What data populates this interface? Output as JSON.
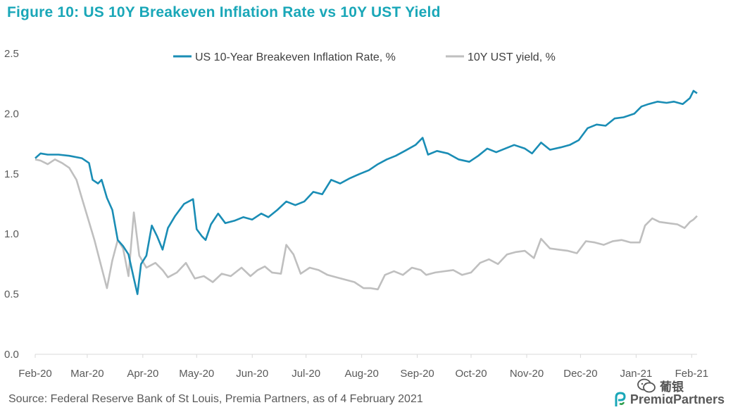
{
  "title": "Figure 10: US 10Y Breakeven Inflation Rate vs 10Y UST Yield",
  "source": "Source: Federal Reserve Bank of St Louis, Premia Partners, as of 4 February 2021",
  "logo": {
    "text": "PremiαPartners",
    "icon": "premia-logo-icon"
  },
  "watermark": {
    "text": "葡银",
    "icon": "wechat-icon"
  },
  "colors": {
    "breakeven": "#1a8db5",
    "yield": "#bfbfbf",
    "title": "#1aa7b8"
  },
  "chart_data": {
    "type": "line",
    "title": "Figure 10: US 10Y Breakeven Inflation Rate vs 10Y UST Yield",
    "xlabel": "",
    "ylabel": "",
    "ylim": [
      0.0,
      2.5
    ],
    "yticks": [
      "0.0",
      "0.5",
      "1.0",
      "1.5",
      "2.0",
      "2.5"
    ],
    "x_ticks": [
      "Feb-20",
      "Mar-20",
      "Apr-20",
      "May-20",
      "Jun-20",
      "Jul-20",
      "Aug-20",
      "Sep-20",
      "Oct-20",
      "Nov-20",
      "Dec-20",
      "Jan-21",
      "Feb-21"
    ],
    "legend": "top-center",
    "grid": false,
    "series": [
      {
        "name": "US 10-Year Breakeven Inflation Rate, %",
        "points": [
          [
            "2020-02-01",
            1.63
          ],
          [
            "2020-02-04",
            1.67
          ],
          [
            "2020-02-08",
            1.66
          ],
          [
            "2020-02-14",
            1.66
          ],
          [
            "2020-02-20",
            1.65
          ],
          [
            "2020-02-27",
            1.63
          ],
          [
            "2020-03-02",
            1.59
          ],
          [
            "2020-03-04",
            1.45
          ],
          [
            "2020-03-07",
            1.42
          ],
          [
            "2020-03-09",
            1.45
          ],
          [
            "2020-03-12",
            1.3
          ],
          [
            "2020-03-15",
            1.2
          ],
          [
            "2020-03-18",
            0.95
          ],
          [
            "2020-03-21",
            0.9
          ],
          [
            "2020-03-24",
            0.83
          ],
          [
            "2020-03-27",
            0.63
          ],
          [
            "2020-03-29",
            0.5
          ],
          [
            "2020-03-31",
            0.75
          ],
          [
            "2020-04-03",
            0.82
          ],
          [
            "2020-04-06",
            1.07
          ],
          [
            "2020-04-09",
            0.98
          ],
          [
            "2020-04-12",
            0.87
          ],
          [
            "2020-04-15",
            1.05
          ],
          [
            "2020-04-19",
            1.15
          ],
          [
            "2020-04-24",
            1.25
          ],
          [
            "2020-04-29",
            1.29
          ],
          [
            "2020-05-01",
            1.04
          ],
          [
            "2020-05-04",
            0.98
          ],
          [
            "2020-05-06",
            0.95
          ],
          [
            "2020-05-09",
            1.08
          ],
          [
            "2020-05-13",
            1.17
          ],
          [
            "2020-05-17",
            1.09
          ],
          [
            "2020-05-22",
            1.11
          ],
          [
            "2020-05-27",
            1.14
          ],
          [
            "2020-06-01",
            1.12
          ],
          [
            "2020-06-06",
            1.17
          ],
          [
            "2020-06-10",
            1.14
          ],
          [
            "2020-06-15",
            1.2
          ],
          [
            "2020-06-20",
            1.27
          ],
          [
            "2020-06-25",
            1.24
          ],
          [
            "2020-06-30",
            1.27
          ],
          [
            "2020-07-05",
            1.35
          ],
          [
            "2020-07-10",
            1.33
          ],
          [
            "2020-07-15",
            1.45
          ],
          [
            "2020-07-20",
            1.42
          ],
          [
            "2020-07-25",
            1.46
          ],
          [
            "2020-07-31",
            1.5
          ],
          [
            "2020-08-05",
            1.53
          ],
          [
            "2020-08-10",
            1.58
          ],
          [
            "2020-08-15",
            1.62
          ],
          [
            "2020-08-20",
            1.65
          ],
          [
            "2020-08-25",
            1.69
          ],
          [
            "2020-08-31",
            1.74
          ],
          [
            "2020-09-04",
            1.8
          ],
          [
            "2020-09-07",
            1.66
          ],
          [
            "2020-09-12",
            1.69
          ],
          [
            "2020-09-18",
            1.67
          ],
          [
            "2020-09-24",
            1.62
          ],
          [
            "2020-09-30",
            1.6
          ],
          [
            "2020-10-05",
            1.65
          ],
          [
            "2020-10-10",
            1.71
          ],
          [
            "2020-10-15",
            1.68
          ],
          [
            "2020-10-20",
            1.71
          ],
          [
            "2020-10-25",
            1.74
          ],
          [
            "2020-10-31",
            1.71
          ],
          [
            "2020-11-04",
            1.67
          ],
          [
            "2020-11-09",
            1.76
          ],
          [
            "2020-11-14",
            1.7
          ],
          [
            "2020-11-20",
            1.72
          ],
          [
            "2020-11-25",
            1.74
          ],
          [
            "2020-11-30",
            1.78
          ],
          [
            "2020-12-05",
            1.88
          ],
          [
            "2020-12-10",
            1.91
          ],
          [
            "2020-12-15",
            1.9
          ],
          [
            "2020-12-20",
            1.96
          ],
          [
            "2020-12-25",
            1.97
          ],
          [
            "2020-12-31",
            2.0
          ],
          [
            "2021-01-04",
            2.06
          ],
          [
            "2021-01-08",
            2.08
          ],
          [
            "2021-01-13",
            2.1
          ],
          [
            "2021-01-18",
            2.09
          ],
          [
            "2021-01-22",
            2.1
          ],
          [
            "2021-01-27",
            2.08
          ],
          [
            "2021-01-31",
            2.13
          ],
          [
            "2021-02-02",
            2.19
          ],
          [
            "2021-02-04",
            2.17
          ]
        ]
      },
      {
        "name": "10Y UST yield, %",
        "points": [
          [
            "2020-02-01",
            1.62
          ],
          [
            "2020-02-04",
            1.61
          ],
          [
            "2020-02-08",
            1.58
          ],
          [
            "2020-02-12",
            1.62
          ],
          [
            "2020-02-16",
            1.59
          ],
          [
            "2020-02-20",
            1.55
          ],
          [
            "2020-02-24",
            1.45
          ],
          [
            "2020-02-27",
            1.3
          ],
          [
            "2020-03-01",
            1.15
          ],
          [
            "2020-03-05",
            0.95
          ],
          [
            "2020-03-09",
            0.72
          ],
          [
            "2020-03-12",
            0.55
          ],
          [
            "2020-03-15",
            0.78
          ],
          [
            "2020-03-18",
            0.95
          ],
          [
            "2020-03-21",
            0.88
          ],
          [
            "2020-03-24",
            0.65
          ],
          [
            "2020-03-27",
            1.18
          ],
          [
            "2020-03-30",
            0.82
          ],
          [
            "2020-04-03",
            0.72
          ],
          [
            "2020-04-08",
            0.76
          ],
          [
            "2020-04-12",
            0.7
          ],
          [
            "2020-04-15",
            0.64
          ],
          [
            "2020-04-20",
            0.68
          ],
          [
            "2020-04-25",
            0.76
          ],
          [
            "2020-04-30",
            0.63
          ],
          [
            "2020-05-05",
            0.65
          ],
          [
            "2020-05-10",
            0.6
          ],
          [
            "2020-05-15",
            0.67
          ],
          [
            "2020-05-20",
            0.65
          ],
          [
            "2020-05-26",
            0.72
          ],
          [
            "2020-05-31",
            0.65
          ],
          [
            "2020-06-04",
            0.7
          ],
          [
            "2020-06-08",
            0.73
          ],
          [
            "2020-06-12",
            0.68
          ],
          [
            "2020-06-17",
            0.67
          ],
          [
            "2020-06-20",
            0.91
          ],
          [
            "2020-06-24",
            0.83
          ],
          [
            "2020-06-28",
            0.67
          ],
          [
            "2020-07-03",
            0.72
          ],
          [
            "2020-07-08",
            0.7
          ],
          [
            "2020-07-13",
            0.66
          ],
          [
            "2020-07-18",
            0.64
          ],
          [
            "2020-07-23",
            0.62
          ],
          [
            "2020-07-28",
            0.6
          ],
          [
            "2020-08-02",
            0.55
          ],
          [
            "2020-08-06",
            0.55
          ],
          [
            "2020-08-10",
            0.54
          ],
          [
            "2020-08-14",
            0.66
          ],
          [
            "2020-08-19",
            0.69
          ],
          [
            "2020-08-24",
            0.66
          ],
          [
            "2020-08-29",
            0.72
          ],
          [
            "2020-09-03",
            0.7
          ],
          [
            "2020-09-06",
            0.66
          ],
          [
            "2020-09-11",
            0.68
          ],
          [
            "2020-09-16",
            0.69
          ],
          [
            "2020-09-21",
            0.7
          ],
          [
            "2020-09-26",
            0.66
          ],
          [
            "2020-10-01",
            0.68
          ],
          [
            "2020-10-06",
            0.76
          ],
          [
            "2020-10-11",
            0.79
          ],
          [
            "2020-10-16",
            0.75
          ],
          [
            "2020-10-21",
            0.83
          ],
          [
            "2020-10-26",
            0.85
          ],
          [
            "2020-10-31",
            0.86
          ],
          [
            "2020-11-05",
            0.8
          ],
          [
            "2020-11-09",
            0.96
          ],
          [
            "2020-11-14",
            0.88
          ],
          [
            "2020-11-19",
            0.87
          ],
          [
            "2020-11-24",
            0.86
          ],
          [
            "2020-11-29",
            0.84
          ],
          [
            "2020-12-04",
            0.94
          ],
          [
            "2020-12-09",
            0.93
          ],
          [
            "2020-12-14",
            0.91
          ],
          [
            "2020-12-19",
            0.94
          ],
          [
            "2020-12-24",
            0.95
          ],
          [
            "2020-12-29",
            0.93
          ],
          [
            "2021-01-03",
            0.93
          ],
          [
            "2021-01-06",
            1.07
          ],
          [
            "2021-01-10",
            1.13
          ],
          [
            "2021-01-14",
            1.1
          ],
          [
            "2021-01-19",
            1.09
          ],
          [
            "2021-01-24",
            1.08
          ],
          [
            "2021-01-28",
            1.05
          ],
          [
            "2021-01-31",
            1.1
          ],
          [
            "2021-02-02",
            1.12
          ],
          [
            "2021-02-04",
            1.15
          ]
        ]
      }
    ]
  }
}
